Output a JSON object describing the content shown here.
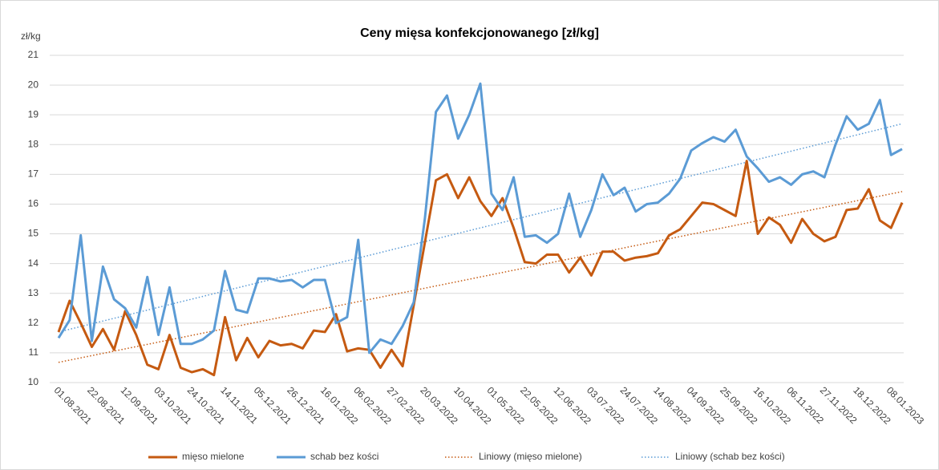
{
  "chart_data": {
    "type": "line",
    "title": "Ceny mięsa konfekcjonowanego [zł/kg]",
    "y_label": "zł/kg",
    "categories": [
      "01.08.2021",
      null,
      null,
      "22.08.2021",
      null,
      null,
      "12.09.2021",
      null,
      null,
      "03.10.2021",
      null,
      null,
      "24.10.2021",
      null,
      null,
      "14.11.2021",
      null,
      null,
      "05.12.2021",
      null,
      null,
      "26.12.2021",
      null,
      null,
      "16.01.2022",
      null,
      null,
      "06.02.2022",
      null,
      null,
      "27.02.2022",
      null,
      null,
      "20.03.2022",
      null,
      null,
      "10.04.2022",
      null,
      null,
      "01.05.2022",
      null,
      null,
      "22.05.2022",
      null,
      null,
      "12.06.2022",
      null,
      null,
      "03.07.2022",
      null,
      null,
      "24.07.2022",
      null,
      null,
      "14.08.2022",
      null,
      null,
      "04.09.2022",
      null,
      null,
      "25.09.2022",
      null,
      null,
      "16.10.2022",
      null,
      null,
      "06.11.2022",
      null,
      null,
      "27.11.2022",
      null,
      null,
      "18.12.2022",
      null,
      null,
      "08.01.2023",
      null
    ],
    "series": [
      {
        "name": "mięso mielone",
        "color": "#c55a11",
        "values": [
          11.7,
          12.75,
          12.0,
          11.2,
          11.8,
          11.1,
          12.4,
          11.6,
          10.6,
          10.45,
          11.6,
          10.5,
          10.35,
          10.45,
          10.25,
          12.2,
          10.75,
          11.5,
          10.85,
          11.4,
          11.25,
          11.3,
          11.15,
          11.75,
          11.7,
          12.3,
          11.05,
          11.15,
          11.1,
          10.5,
          11.1,
          10.55,
          12.6,
          14.7,
          16.8,
          17.0,
          16.2,
          16.9,
          16.1,
          15.6,
          16.2,
          15.2,
          14.05,
          14.0,
          14.3,
          14.3,
          13.7,
          14.2,
          13.6,
          14.4,
          14.4,
          14.1,
          14.2,
          14.25,
          14.35,
          14.95,
          15.15,
          15.6,
          16.05,
          16.0,
          15.8,
          15.6,
          17.45,
          15.0,
          15.55,
          15.3,
          14.7,
          15.5,
          15.0,
          14.75,
          14.9,
          15.8,
          15.85,
          16.5,
          15.45,
          15.2,
          16.05
        ]
      },
      {
        "name": "schab bez kości",
        "color": "#5b9bd5",
        "values": [
          11.5,
          12.1,
          14.95,
          11.4,
          13.9,
          12.8,
          12.5,
          11.85,
          13.55,
          11.6,
          13.2,
          11.3,
          11.3,
          11.45,
          11.75,
          13.75,
          12.45,
          12.35,
          13.5,
          13.5,
          13.4,
          13.45,
          13.2,
          13.45,
          13.45,
          12.0,
          12.2,
          14.8,
          11.0,
          11.45,
          11.3,
          11.9,
          12.7,
          15.5,
          19.1,
          19.65,
          18.2,
          19.0,
          20.05,
          16.35,
          15.8,
          16.9,
          14.9,
          14.95,
          14.7,
          15.0,
          16.35,
          14.9,
          15.8,
          17.0,
          16.3,
          16.55,
          15.75,
          16.0,
          16.05,
          16.35,
          16.85,
          17.8,
          18.05,
          18.25,
          18.1,
          18.5,
          17.6,
          17.2,
          16.75,
          16.9,
          16.65,
          17.0,
          17.1,
          16.9,
          18.0,
          18.95,
          18.5,
          18.7,
          19.5,
          17.65,
          17.85
        ]
      }
    ],
    "trendlines": [
      {
        "name": "Liniowy (mięso mielone)",
        "color": "#c55a11",
        "start": 10.68,
        "end": 16.42
      },
      {
        "name": "Liniowy (schab bez kości)",
        "color": "#5b9bd5",
        "start": 11.7,
        "end": 18.7
      }
    ],
    "ylim": [
      10,
      21
    ],
    "yticks": [
      10,
      11,
      12,
      13,
      14,
      15,
      16,
      17,
      18,
      19,
      20,
      21
    ],
    "grid": true,
    "legend": "bottom"
  }
}
